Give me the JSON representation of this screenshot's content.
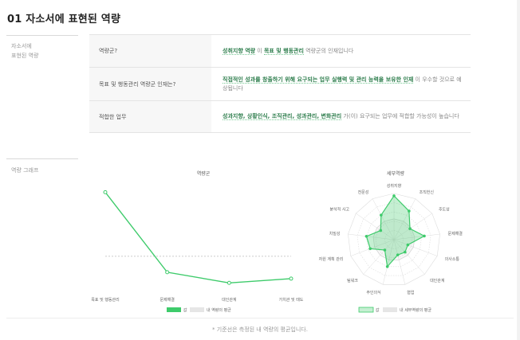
{
  "page": {
    "title": "01 자소서에 표현된 역량",
    "footnote": "* 기준선은 측정된 내 역량의 평균입니다."
  },
  "section1": {
    "label_line1": "자소서에",
    "label_line2": "표현된 역량",
    "rows": [
      {
        "question": "역량군?",
        "answer_parts": [
          {
            "text": "성취지향 역량",
            "hl": true
          },
          {
            "text": " 이 ",
            "hl": false
          },
          {
            "text": "목표 및 행동관리",
            "hl": true
          },
          {
            "text": " 역량군의 인재입니다",
            "hl": false
          }
        ]
      },
      {
        "question": "목표 및 행동관리 역량군 인재는?",
        "answer_parts": [
          {
            "text": "직접적인 성과를 창출하기 위해 요구되는 업무 실행력 및 관리 능력을 보유한 인재",
            "hl": true
          },
          {
            "text": " 이 우수할 것으로 예상됩니다",
            "hl": false
          }
        ]
      },
      {
        "question": "적합한 업무",
        "answer_parts": [
          {
            "text": "성과지향, 상황인식, 조직관리, 성과관리, 변화관리",
            "hl": true
          },
          {
            "text": " 가(이) 요구되는 업무에 적합할 가능성이 높습니다",
            "hl": false
          }
        ]
      }
    ]
  },
  "section2": {
    "label": "역량 그래프"
  },
  "colors": {
    "accent": "#3ecb6b",
    "accent_fill": "rgba(62,203,107,0.30)",
    "baseline": "#d6d6d6",
    "web": "#dcdcdc"
  },
  "chart_data": [
    {
      "type": "line",
      "title": "역량군",
      "categories": [
        "목표 및 행동관리",
        "문제해결",
        "대인관계",
        "가치관 및 태도"
      ],
      "series": [
        {
          "name": "값",
          "values": [
            0.93,
            0.18,
            0.08,
            0.12
          ]
        },
        {
          "name": "내 역량의 평균",
          "values": [
            0.33,
            0.33,
            0.33,
            0.33
          ]
        }
      ],
      "ylim": [
        0,
        1
      ],
      "grid": false,
      "legend": "bottom-center"
    },
    {
      "type": "radar",
      "title": "세부역량",
      "categories": [
        "성취지향",
        "조직헌신",
        "주도성",
        "문제해결",
        "의사소통",
        "대인관계",
        "협업",
        "주인의식",
        "팀워크",
        "자원 계획 관리",
        "치밀성",
        "분석적 사고",
        "전문성"
      ],
      "series": [
        {
          "name": "값",
          "values": [
            0.95,
            0.7,
            0.42,
            0.66,
            0.32,
            0.36,
            0.34,
            0.6,
            0.3,
            0.55,
            0.6,
            0.35,
            0.6
          ]
        },
        {
          "name": "내 세부역량의 평균",
          "values": [
            0.45,
            0.45,
            0.45,
            0.45,
            0.45,
            0.45,
            0.45,
            0.45,
            0.45,
            0.45,
            0.45,
            0.45,
            0.45
          ]
        }
      ],
      "rmax": 1,
      "rings": 5,
      "legend": "bottom-center"
    }
  ]
}
